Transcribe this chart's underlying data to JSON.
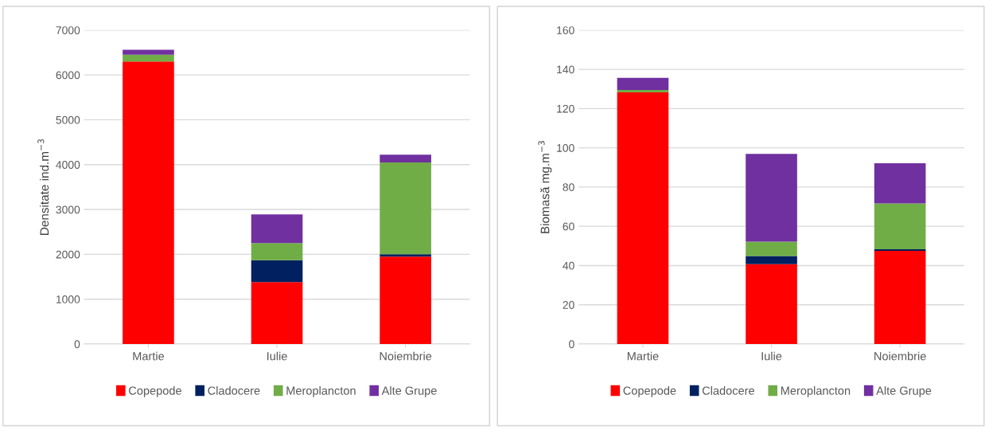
{
  "chart_data": [
    {
      "type": "bar",
      "stacked": true,
      "ylabel": "Densitate ind.m$^{−3}$",
      "categories": [
        "Martie",
        "Iulie",
        "Noiembrie"
      ],
      "ylim": [
        0,
        7000
      ],
      "yticks": [
        0,
        1000,
        2000,
        3000,
        4000,
        5000,
        6000,
        7000
      ],
      "grid": "y",
      "legend": "bottom",
      "series": [
        {
          "name": "Copepode",
          "color": "#ff0000",
          "values": [
            6300,
            1380,
            1950
          ]
        },
        {
          "name": "Cladocere",
          "color": "#002060",
          "values": [
            null,
            490,
            50
          ]
        },
        {
          "name": "Meroplancton",
          "color": "#70ad47",
          "values": [
            150,
            380,
            2050
          ]
        },
        {
          "name": "Alte Grupe",
          "color": "#7030a0",
          "values": [
            110,
            640,
            170
          ]
        }
      ]
    },
    {
      "type": "bar",
      "stacked": true,
      "ylabel": "Biomasă mg.m$^{−3}$",
      "categories": [
        "Martie",
        "Iulie",
        "Noiembrie"
      ],
      "ylim": [
        0,
        160
      ],
      "yticks": [
        0,
        20,
        40,
        60,
        80,
        100,
        120,
        140,
        160
      ],
      "grid": "y",
      "legend": "bottom",
      "series": [
        {
          "name": "Copepode",
          "color": "#ff0000",
          "values": [
            128.3,
            40.7,
            47.5
          ]
        },
        {
          "name": "Cladocere",
          "color": "#002060",
          "values": [
            null,
            4.2,
            0.8
          ]
        },
        {
          "name": "Meroplancton",
          "color": "#70ad47",
          "values": [
            1.2,
            7.3,
            23.3
          ]
        },
        {
          "name": "Alte Grupe",
          "color": "#7030a0",
          "values": [
            6.2,
            44.7,
            20.5
          ]
        }
      ]
    }
  ]
}
